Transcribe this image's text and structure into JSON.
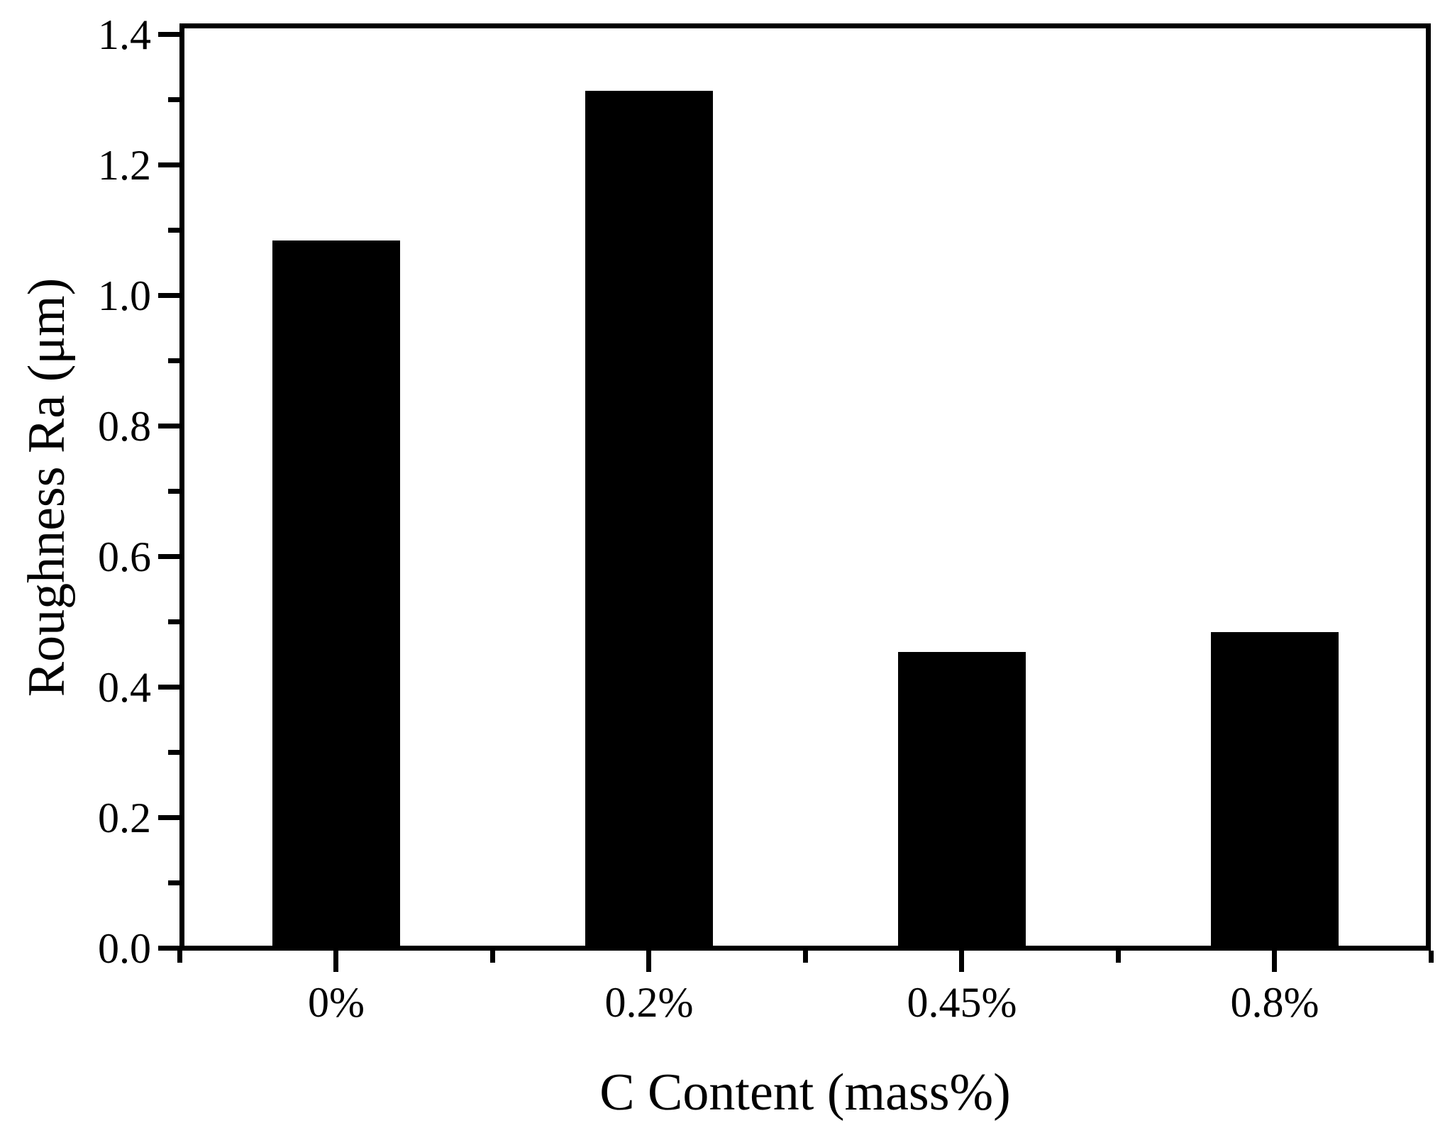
{
  "figure": {
    "background_color": "#ffffff",
    "axis_color": "#000000",
    "bar_color": "#000000"
  },
  "chart_data": {
    "type": "bar",
    "title": "",
    "categories": [
      "0%",
      "0.2%",
      "0.45%",
      "0.8%"
    ],
    "values": [
      1.08,
      1.31,
      0.45,
      0.48
    ],
    "series_name": "Roughness Ra",
    "xlabel": "C Content (mass%)",
    "ylabel": "Roughness Ra (μm)",
    "ylim": [
      0,
      1.4
    ],
    "y_major_ticks": [
      0.0,
      0.2,
      0.4,
      0.6,
      0.8,
      1.0,
      1.2,
      1.4
    ],
    "y_tick_labels": [
      "0.0",
      "0.2",
      "0.4",
      "0.6",
      "0.8",
      "1.0",
      "1.2",
      "1.4"
    ],
    "y_minor_ticks": [
      0.1,
      0.3,
      0.5,
      0.7,
      0.9,
      1.1,
      1.3
    ],
    "grid": false,
    "legend": null,
    "bar_color": "#000000"
  }
}
